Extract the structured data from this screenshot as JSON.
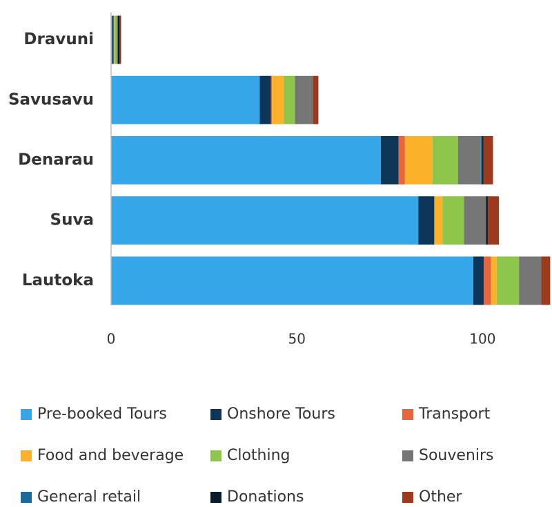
{
  "chart_data": {
    "type": "stacked-barh",
    "categories": [
      "Dravuni",
      "Savusavu",
      "Denarau",
      "Suva",
      "Lautoka"
    ],
    "series": [
      {
        "name": "Pre-booked Tours",
        "color": "#36a7e9",
        "values": [
          0.3,
          40,
          72.6,
          82.7,
          97.5
        ]
      },
      {
        "name": "Onshore Tours",
        "color": "#0c3558",
        "values": [
          0.4,
          3,
          4.8,
          4.3,
          2.8
        ]
      },
      {
        "name": "Transport",
        "color": "#e8663b",
        "values": [
          0,
          0.3,
          1.7,
          0,
          2
        ]
      },
      {
        "name": "Food and beverage",
        "color": "#fbb12a",
        "values": [
          0.2,
          3.2,
          7.4,
          2.2,
          1.5
        ]
      },
      {
        "name": "Clothing",
        "color": "#8dc64a",
        "values": [
          0.6,
          3,
          6.9,
          5.8,
          6
        ]
      },
      {
        "name": "Souvenirs",
        "color": "#767676",
        "values": [
          0.2,
          4.8,
          6.1,
          5.9,
          6
        ]
      },
      {
        "name": "General retail",
        "color": "#1a6a9a",
        "values": [
          0.1,
          0,
          0.4,
          0,
          0
        ]
      },
      {
        "name": "Donations",
        "color": "#0a1b2e",
        "values": [
          0.5,
          0,
          0.3,
          0.5,
          0
        ]
      },
      {
        "name": "Other",
        "color": "#9b3a1c",
        "values": [
          0.4,
          1.5,
          2.6,
          3,
          2.4
        ]
      }
    ],
    "xlim": [
      0,
      118.5
    ],
    "xticks": [
      0,
      50,
      100
    ]
  }
}
